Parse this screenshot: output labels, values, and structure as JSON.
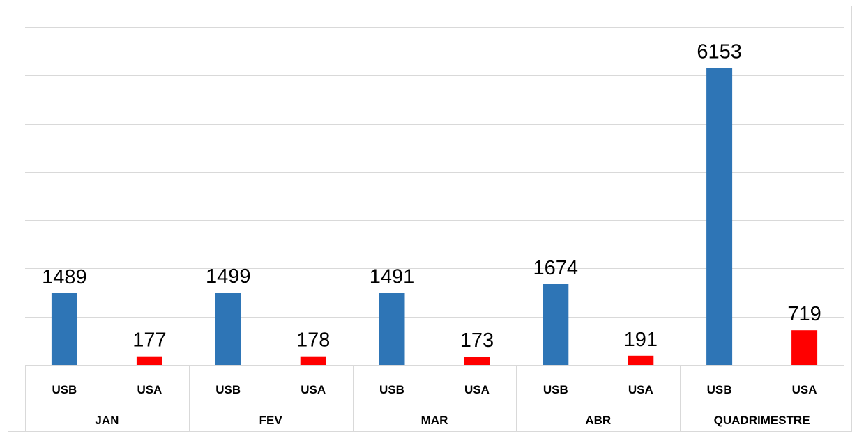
{
  "chart_data": {
    "type": "bar",
    "categories": [
      "JAN",
      "FEV",
      "MAR",
      "ABR",
      "QUADRIMESTRE"
    ],
    "sub_categories": [
      "USB",
      "USA"
    ],
    "series": [
      {
        "name": "USB",
        "color": "#2e75b6",
        "values": [
          1489,
          1499,
          1491,
          1674,
          6153
        ]
      },
      {
        "name": "USA",
        "color": "#ff0000",
        "values": [
          177,
          178,
          173,
          191,
          719
        ]
      }
    ],
    "title": "",
    "xlabel": "",
    "ylabel": "",
    "ylim": [
      0,
      7000
    ],
    "y_grid_step": 1000,
    "grid": true,
    "y_tick_labels_visible": false,
    "data_labels": true
  }
}
